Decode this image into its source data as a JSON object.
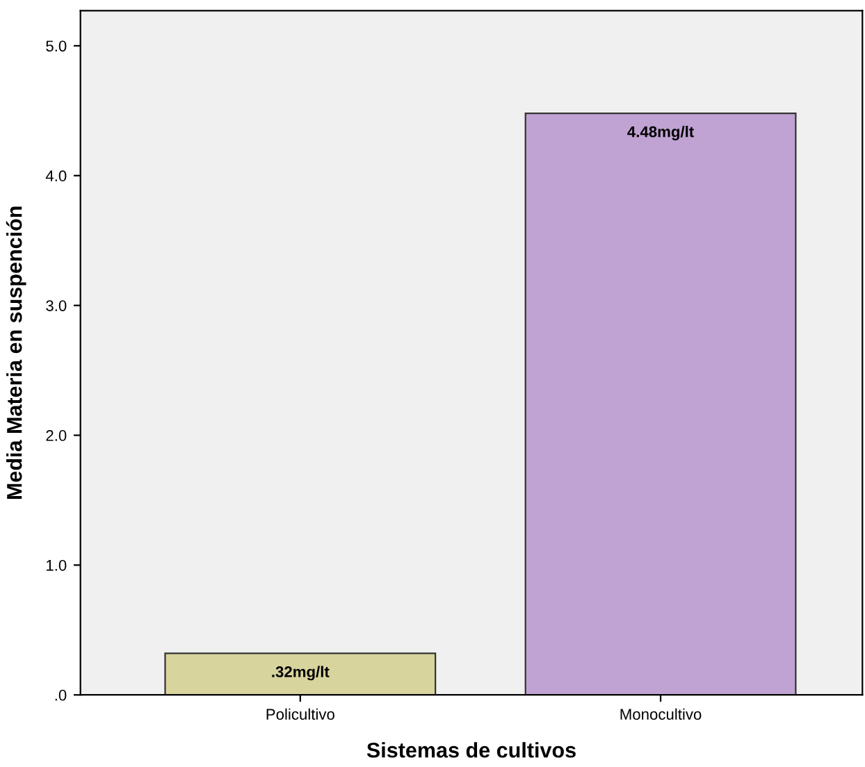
{
  "chart_data": {
    "type": "bar",
    "xlabel": "Sistemas de cultivos",
    "ylabel": "Media Materia en suspención",
    "categories": [
      "Policultivo",
      "Monocultivo"
    ],
    "values": [
      0.32,
      4.48
    ],
    "colors": [
      "#d8d49e",
      "#c0a3d2"
    ],
    "value_labels": [
      ".32mg/lt",
      "4.48mg/lt"
    ],
    "ylim": [
      0,
      5.27
    ],
    "yticks": [
      {
        "value": 0,
        "label": ".0"
      },
      {
        "value": 1,
        "label": "1.0"
      },
      {
        "value": 2,
        "label": "2.0"
      },
      {
        "value": 3,
        "label": "3.0"
      },
      {
        "value": 4,
        "label": "4.0"
      },
      {
        "value": 5,
        "label": "5.0"
      }
    ],
    "grid": false,
    "legend": false
  }
}
